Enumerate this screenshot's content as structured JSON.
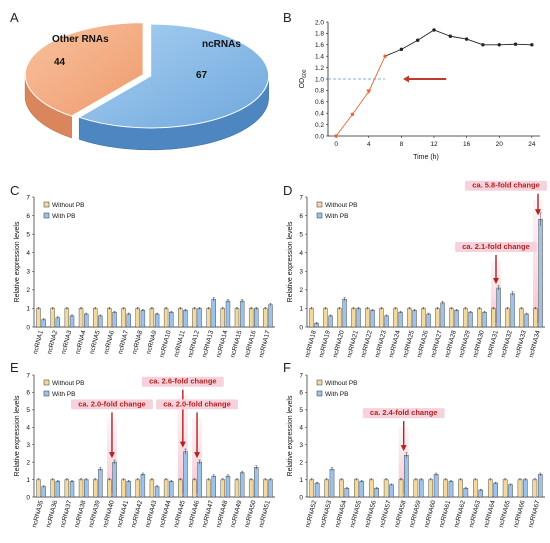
{
  "panel_letters": [
    "A",
    "B",
    "C",
    "D",
    "E",
    "F"
  ],
  "chart_data": [
    {
      "panel": "A",
      "type": "pie",
      "labels": [
        "ncRNAs",
        "Other RNAs"
      ],
      "values": [
        67,
        44
      ],
      "colors": [
        "#8dbfe8",
        "#f6ae82"
      ]
    },
    {
      "panel": "B",
      "type": "line",
      "xlabel": "Time (h)",
      "ylabel": "OD",
      "ylabel_sub": "600",
      "x": [
        0,
        2,
        4,
        6,
        8,
        10,
        12,
        14,
        16,
        18,
        20,
        22,
        24
      ],
      "y": [
        0.0,
        0.38,
        0.78,
        1.4,
        1.52,
        1.68,
        1.86,
        1.75,
        1.7,
        1.6,
        1.6,
        1.61,
        1.6
      ],
      "xlim": [
        -1,
        25
      ],
      "ylim": [
        0,
        2.0
      ],
      "xticks": [
        "0",
        "4",
        "8",
        "12",
        "16",
        "20",
        "24"
      ],
      "yticks": [
        "0.0",
        "0.2",
        "0.4",
        "0.6",
        "0.8",
        "1.0",
        "1.2",
        "1.4",
        "1.6",
        "1.8",
        "2.0"
      ],
      "reference_line_y": 1.0,
      "colors": {
        "early": "#e8663a",
        "late": "#222222",
        "ref": "#5b9bd5",
        "arrow": "#c0392b"
      }
    },
    {
      "panel": "C",
      "type": "bar",
      "ylabel": "Relative expression levels",
      "ylim": [
        0,
        7
      ],
      "yticks": [
        "0",
        "1",
        "2",
        "3",
        "4",
        "5",
        "6",
        "7"
      ],
      "categories": [
        "ncRNA1",
        "ncRNA2",
        "ncRNA3",
        "ncRNA4",
        "ncRNA5",
        "ncRNA6",
        "ncRNA7",
        "ncRNA8",
        "ncRNA9",
        "ncRNA10",
        "ncRNA11",
        "ncRNA12",
        "ncRNA13",
        "ncRNA14",
        "ncRNA15",
        "ncRNA16",
        "ncRNA17"
      ],
      "series": [
        {
          "name": "Without PB",
          "values": [
            1,
            1,
            1,
            1,
            1,
            1,
            1,
            1,
            1,
            1,
            1,
            1,
            1,
            1,
            1,
            1,
            1
          ]
        },
        {
          "name": "With PB",
          "values": [
            0.4,
            0.5,
            0.6,
            0.7,
            0.6,
            0.8,
            0.7,
            0.9,
            0.7,
            0.8,
            0.9,
            1.0,
            1.5,
            1.4,
            1.4,
            1.0,
            1.2
          ]
        }
      ],
      "annotations": []
    },
    {
      "panel": "D",
      "type": "bar",
      "ylabel": "Relative expression levels",
      "ylim": [
        0,
        7
      ],
      "yticks": [
        "0",
        "1",
        "2",
        "3",
        "4",
        "5",
        "6",
        "7"
      ],
      "categories": [
        "ncRNA18",
        "ncRNA19",
        "ncRNA20",
        "ncRNA21",
        "ncRNA22",
        "ncRNA23",
        "ncRNA24",
        "ncRNA25",
        "ncRNA26",
        "ncRNA27",
        "ncRNA28",
        "ncRNA29",
        "ncRNA30",
        "ncRNA31",
        "ncRNA32",
        "ncRNA33",
        "ncRNA34"
      ],
      "series": [
        {
          "name": "Without PB",
          "values": [
            1,
            1,
            1,
            1,
            1,
            1,
            1,
            1,
            1,
            1,
            1,
            1,
            1,
            1,
            1,
            1,
            1
          ]
        },
        {
          "name": "With PB",
          "values": [
            0.2,
            0.6,
            1.5,
            1.0,
            0.9,
            0.6,
            0.8,
            0.9,
            0.7,
            1.3,
            0.9,
            0.8,
            0.8,
            2.1,
            1.8,
            0.7,
            5.8
          ]
        }
      ],
      "annotations": [
        {
          "index": 13,
          "text": "ca. 2.1-fold change",
          "level": 4.2
        },
        {
          "index": 16,
          "text": "ca. 5.8-fold change",
          "level": 7.5
        }
      ]
    },
    {
      "panel": "E",
      "type": "bar",
      "ylabel": "Relative expression levels",
      "ylim": [
        0,
        7
      ],
      "yticks": [
        "0",
        "1",
        "2",
        "3",
        "4",
        "5",
        "6",
        "7"
      ],
      "categories": [
        "ncRNA35",
        "ncRNA36",
        "ncRNA37",
        "ncRNA38",
        "ncRNA39",
        "ncRNA40",
        "ncRNA41",
        "ncRNA42",
        "ncRNA43",
        "ncRNA44",
        "ncRNA45",
        "ncRNA46",
        "ncRNA47",
        "ncRNA48",
        "ncRNA49",
        "ncRNA50",
        "ncRNA51"
      ],
      "series": [
        {
          "name": "Without PB",
          "values": [
            1,
            1,
            1,
            1,
            1,
            1,
            1,
            1,
            1,
            1,
            1,
            1,
            1,
            1,
            1,
            1,
            1
          ]
        },
        {
          "name": "With PB",
          "values": [
            0.6,
            0.9,
            0.9,
            1.0,
            1.6,
            2.0,
            0.9,
            1.3,
            0.6,
            0.9,
            2.6,
            2.0,
            1.2,
            1.2,
            1.4,
            1.7,
            1.0
          ]
        }
      ],
      "annotations": [
        {
          "index": 5,
          "text": "ca. 2.0-fold change",
          "level": 5.2
        },
        {
          "index": 10,
          "text": "ca. 2.6-fold change",
          "level": 6.5
        },
        {
          "index": 11,
          "text": "ca. 2.0-fold change",
          "level": 5.2
        }
      ]
    },
    {
      "panel": "F",
      "type": "bar",
      "ylabel": "Relative expression levels",
      "ylim": [
        0,
        7
      ],
      "yticks": [
        "0",
        "1",
        "2",
        "3",
        "4",
        "5",
        "6",
        "7"
      ],
      "categories": [
        "ncRNA52",
        "ncRNA53",
        "ncRNA54",
        "ncRNA55",
        "ncRNA56",
        "ncRNA57",
        "ncRNA58",
        "ncRNA59",
        "ncRNA60",
        "ncRNA61",
        "ncRNA62",
        "ncRNA63",
        "ncRNA64",
        "ncRNA65",
        "ncRNA66",
        "ncRNA67"
      ],
      "series": [
        {
          "name": "Without PB",
          "values": [
            1,
            1,
            1,
            1,
            1,
            1,
            1,
            1,
            1,
            1,
            1,
            1,
            1,
            1,
            1,
            1
          ]
        },
        {
          "name": "With PB",
          "values": [
            0.8,
            1.6,
            0.5,
            0.9,
            0.5,
            0.7,
            2.4,
            1.0,
            1.3,
            0.9,
            0.5,
            0.4,
            0.8,
            0.7,
            1.0,
            1.3
          ]
        }
      ],
      "annotations": [
        {
          "index": 6,
          "text": "ca. 2.4-fold change",
          "level": 4.7
        }
      ]
    }
  ],
  "colors": {
    "without_pb": "#f2d9a0",
    "with_pb": "#9dc3ea",
    "bar_edge": "#333333",
    "annotation": "#b22222",
    "annotation_bg": "#f6d3dc"
  }
}
